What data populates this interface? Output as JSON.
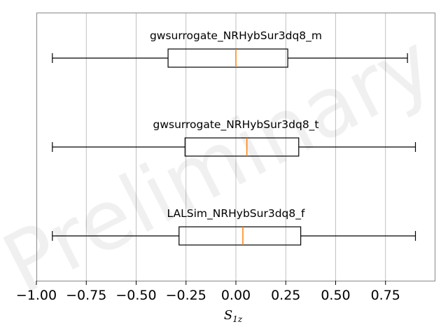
{
  "chart_data": {
    "type": "boxplot",
    "orientation": "horizontal",
    "xlabel_main": "S",
    "xlabel_sub": "1z",
    "xlim": [
      -1.0,
      1.0
    ],
    "xticks": [
      -1.0,
      -0.75,
      -0.5,
      -0.25,
      0.0,
      0.25,
      0.5,
      0.75
    ],
    "xtick_labels": [
      "−1.00",
      "−0.75",
      "−0.50",
      "−0.25",
      "0.00",
      "0.25",
      "0.50",
      "0.75"
    ],
    "grid": "vertical",
    "watermark": "Preliminary",
    "colors": {
      "box": "#000000",
      "median": "#ff7f0e",
      "grid": "#b0b0b0",
      "frame": "#888888"
    },
    "series": [
      {
        "name": "gwsurrogate_NRHybSur3dq8_m",
        "whisker_low": -0.92,
        "q1": -0.34,
        "median": 0.0,
        "q3": 0.26,
        "whisker_high": 0.86
      },
      {
        "name": "gwsurrogate_NRHybSur3dq8_t",
        "whisker_low": -0.92,
        "q1": -0.255,
        "median": 0.055,
        "q3": 0.315,
        "whisker_high": 0.9
      },
      {
        "name": "LALSim_NRHybSur3dq8_f",
        "whisker_low": -0.92,
        "q1": -0.285,
        "median": 0.035,
        "q3": 0.325,
        "whisker_high": 0.9
      }
    ]
  }
}
